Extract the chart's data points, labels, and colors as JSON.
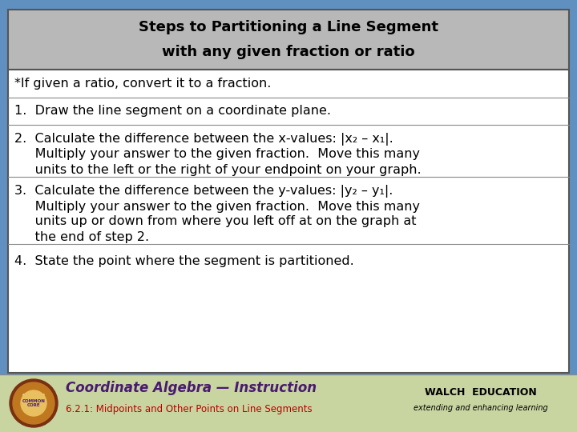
{
  "title_line1": "Steps to Partitioning a Line Segment",
  "title_line2": "with any given fraction or ratio",
  "title_bg": "#b8b8b8",
  "title_fg": "#000000",
  "body_bg": "#ffffff",
  "border_color": "#555555",
  "slide_bg_top": "#6090c0",
  "footer_bg": "#c8d5a0",
  "footer_title": "Coordinate Algebra — Instruction",
  "footer_subtitle": "6.2.1: Midpoints and Other Points on Line Segments",
  "footer_title_color": "#4a1a70",
  "footer_subtitle_color": "#bb0000",
  "body_text_color": "#000000",
  "step0": "*If given a ratio, convert it to a fraction.",
  "step1": "1.  Draw the line segment on a coordinate plane.",
  "step2_line1": "2.  Calculate the difference between the x-values: |x₂ – x₁|.",
  "step2_line2": "     Multiply your answer to the given fraction.  Move this many",
  "step2_line3": "     units to the left or the right of your endpoint on your graph.",
  "step3_line1": "3.  Calculate the difference between the y-values: |y₂ – y₁|.",
  "step3_line2": "     Multiply your answer to the given fraction.  Move this many",
  "step3_line3": "     units up or down from where you left off at on the graph at",
  "step3_line4": "     the end of step 2.",
  "step4": "4.  State the point where the segment is partitioned.",
  "font_size_title": 13,
  "font_size_body": 11.5,
  "font_size_footer_title": 12,
  "font_size_footer_sub": 8.5,
  "walch_text": "WALCH  EDUCATION",
  "walch_sub": "extending and enhancing learning"
}
